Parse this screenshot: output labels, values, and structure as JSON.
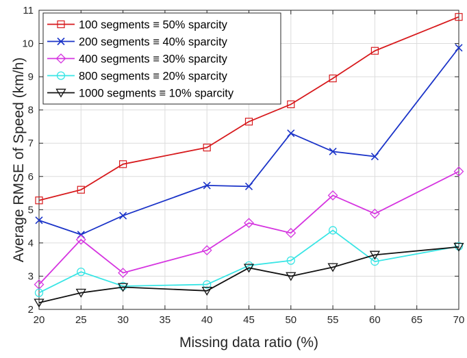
{
  "chart_data": {
    "type": "line",
    "title": "",
    "xlabel": "Missing data ratio (%)",
    "ylabel": "Average RMSE of Speed (km/h)",
    "xlim": [
      20,
      70
    ],
    "ylim": [
      2,
      11
    ],
    "xticks": [
      "20",
      "25",
      "30",
      "35",
      "40",
      "45",
      "50",
      "55",
      "60",
      "65",
      "70"
    ],
    "yticks": [
      "2",
      "3",
      "4",
      "5",
      "6",
      "7",
      "8",
      "9",
      "10",
      "11"
    ],
    "grid": true,
    "legend_position": "top-left",
    "x": [
      20,
      25,
      30,
      40,
      45,
      50,
      55,
      60,
      70
    ],
    "series": [
      {
        "name": "100 segments ≡ 50% sparcity",
        "color": "#d7191c",
        "marker": "square",
        "values": [
          5.28,
          5.6,
          6.37,
          6.87,
          7.65,
          8.17,
          8.95,
          9.78,
          10.8
        ]
      },
      {
        "name": "200 segments ≡ 40% sparcity",
        "color": "#1a33c8",
        "marker": "x",
        "values": [
          4.68,
          4.25,
          4.82,
          5.73,
          5.7,
          7.3,
          6.75,
          6.6,
          9.87
        ]
      },
      {
        "name": "400 segments ≡ 30% sparcity",
        "color": "#d534e0",
        "marker": "diamond",
        "values": [
          2.75,
          4.1,
          3.1,
          3.78,
          4.6,
          4.3,
          5.43,
          4.88,
          6.15
        ]
      },
      {
        "name": "800 segments ≡ 20% sparcity",
        "color": "#39e5e5",
        "marker": "circle",
        "values": [
          2.5,
          3.13,
          2.7,
          2.75,
          3.32,
          3.47,
          4.38,
          3.44,
          3.9
        ]
      },
      {
        "name": "1000 segments ≡ 10% sparcity",
        "color": "#111111",
        "marker": "triangle-down",
        "values": [
          2.2,
          2.5,
          2.67,
          2.56,
          3.25,
          3.0,
          3.27,
          3.64,
          3.88
        ]
      }
    ]
  }
}
